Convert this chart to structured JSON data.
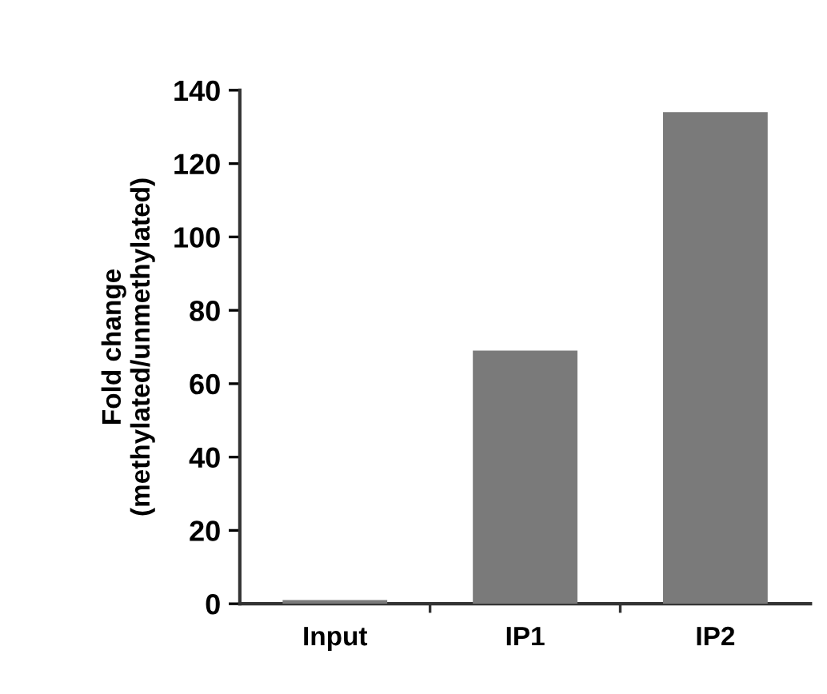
{
  "chart_data": {
    "type": "bar",
    "ylabel": "Fold change\n(methylated/unmethylated)",
    "categories": [
      "Input",
      "IP1",
      "IP2"
    ],
    "values": [
      1,
      69,
      134
    ],
    "color": "#7a7a7a",
    "ylim": [
      0,
      140
    ],
    "yticks": [
      0,
      20,
      40,
      60,
      80,
      100,
      120,
      140
    ],
    "grid": false,
    "legend": false
  }
}
